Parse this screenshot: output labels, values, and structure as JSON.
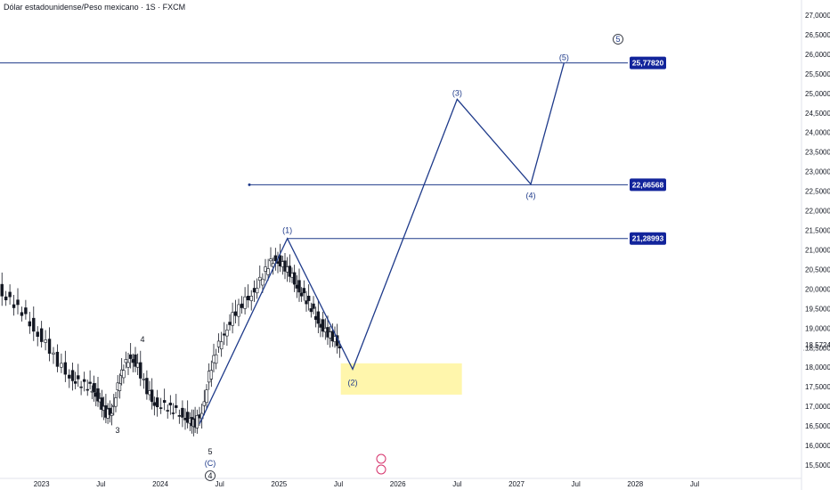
{
  "title": "Dólar estadounidense/Peso mexicano · 1S · FXCM",
  "colors": {
    "wave": "#1e3a8a",
    "tag_bg": "#12249b",
    "zone": "#fff59d",
    "candle": "#131722",
    "axis_text": "#131722"
  },
  "chart_data": {
    "type": "candlestick",
    "title": "Dólar estadounidense/Peso mexicano · 1S · FXCM",
    "y_axis": {
      "ticks": [
        "27,00000",
        "26,50000",
        "26,00000",
        "25,50000",
        "25,00000",
        "24,50000",
        "24,00000",
        "23,50000",
        "23,00000",
        "22,50000",
        "22,00000",
        "21,50000",
        "21,00000",
        "20,50000",
        "20,00000",
        "19,50000",
        "19,00000",
        "18,50000",
        "18,00000",
        "17,50000",
        "17,00000",
        "16,50000",
        "16,00000",
        "15,50000"
      ],
      "tick_values": [
        27,
        26.5,
        26,
        25.5,
        25,
        24.5,
        24,
        23.5,
        23,
        22.5,
        22,
        21.5,
        21,
        20.5,
        20,
        19.5,
        19,
        18.5,
        18,
        17.5,
        17,
        16.5,
        16,
        15.5
      ],
      "last_price": "18,57240",
      "last_value": 18.5724
    },
    "x_axis": {
      "ticks": [
        "2023",
        "Jul",
        "2024",
        "Jul",
        "2025",
        "Jul",
        "2026",
        "Jul",
        "2027",
        "Jul",
        "2028",
        "Jul"
      ],
      "tick_dates": [
        2023.0,
        2023.5,
        2024.0,
        2024.5,
        2025.0,
        2025.5,
        2026.0,
        2026.5,
        2027.0,
        2027.5,
        2028.0,
        2028.5
      ]
    },
    "price_path": [
      [
        2022.55,
        20.2
      ],
      [
        2022.65,
        20.0
      ],
      [
        2022.75,
        19.7
      ],
      [
        2022.85,
        19.4
      ],
      [
        2022.95,
        19.0
      ],
      [
        2023.05,
        18.6
      ],
      [
        2023.15,
        18.1
      ],
      [
        2023.25,
        17.8
      ],
      [
        2023.32,
        17.6
      ],
      [
        2023.4,
        17.5
      ],
      [
        2023.45,
        17.45
      ],
      [
        2023.5,
        17.1
      ],
      [
        2023.55,
        16.8
      ],
      [
        2023.6,
        16.9
      ],
      [
        2023.65,
        17.5
      ],
      [
        2023.7,
        18.0
      ],
      [
        2023.76,
        18.3
      ],
      [
        2023.82,
        18.0
      ],
      [
        2023.9,
        17.4
      ],
      [
        2023.96,
        17.1
      ],
      [
        2024.05,
        17.0
      ],
      [
        2024.12,
        16.9
      ],
      [
        2024.2,
        16.8
      ],
      [
        2024.26,
        16.6
      ],
      [
        2024.3,
        16.55
      ],
      [
        2024.36,
        16.9
      ],
      [
        2024.42,
        17.8
      ],
      [
        2024.48,
        18.4
      ],
      [
        2024.55,
        18.9
      ],
      [
        2024.62,
        19.3
      ],
      [
        2024.7,
        19.6
      ],
      [
        2024.78,
        19.9
      ],
      [
        2024.85,
        20.2
      ],
      [
        2024.92,
        20.6
      ],
      [
        2024.98,
        20.8
      ],
      [
        2025.04,
        20.6
      ],
      [
        2025.1,
        20.4
      ],
      [
        2025.16,
        20.1
      ],
      [
        2025.22,
        19.8
      ],
      [
        2025.28,
        19.5
      ],
      [
        2025.34,
        19.2
      ],
      [
        2025.4,
        18.9
      ],
      [
        2025.46,
        18.75
      ],
      [
        2025.52,
        18.57
      ]
    ],
    "waves": [
      {
        "name": "projection",
        "points": [
          [
            2024.33,
            16.55
          ],
          [
            2025.07,
            21.29
          ],
          [
            2025.62,
            17.95
          ],
          [
            2026.5,
            24.85
          ],
          [
            2027.12,
            22.68
          ],
          [
            2027.4,
            25.78
          ]
        ]
      }
    ],
    "wave_labels": [
      {
        "text": "(1)",
        "x": 2025.07,
        "y": 21.29
      },
      {
        "text": "(2)",
        "x": 2025.62,
        "y": 17.95
      },
      {
        "text": "(3)",
        "x": 2026.5,
        "y": 24.85
      },
      {
        "text": "(4)",
        "x": 2027.12,
        "y": 22.68
      },
      {
        "text": "(5)",
        "x": 2027.4,
        "y": 25.78
      },
      {
        "text": "5",
        "x": 2027.45,
        "y": 26.5
      },
      {
        "text": "3",
        "x": 2023.45,
        "y": 16.95
      },
      {
        "text": "4",
        "x": 2023.75,
        "y": 18.55
      },
      {
        "text": "5",
        "x": 2024.27,
        "y": 16.3
      },
      {
        "text": "(C)",
        "x": 2024.27,
        "y": 16.0
      },
      {
        "text": "4",
        "x": 2024.27,
        "y": 15.7
      }
    ],
    "levels": [
      {
        "value": 25.7782,
        "label": "25,77820",
        "from": 2022.35
      },
      {
        "value": 22.66568,
        "label": "22,66568",
        "from": 2024.75
      },
      {
        "value": 21.28993,
        "label": "21,28993",
        "from": 2025.07
      }
    ],
    "zone": {
      "x_from": 2025.52,
      "x_to": 2026.54,
      "y_from": 17.3,
      "y_to": 18.1
    }
  }
}
